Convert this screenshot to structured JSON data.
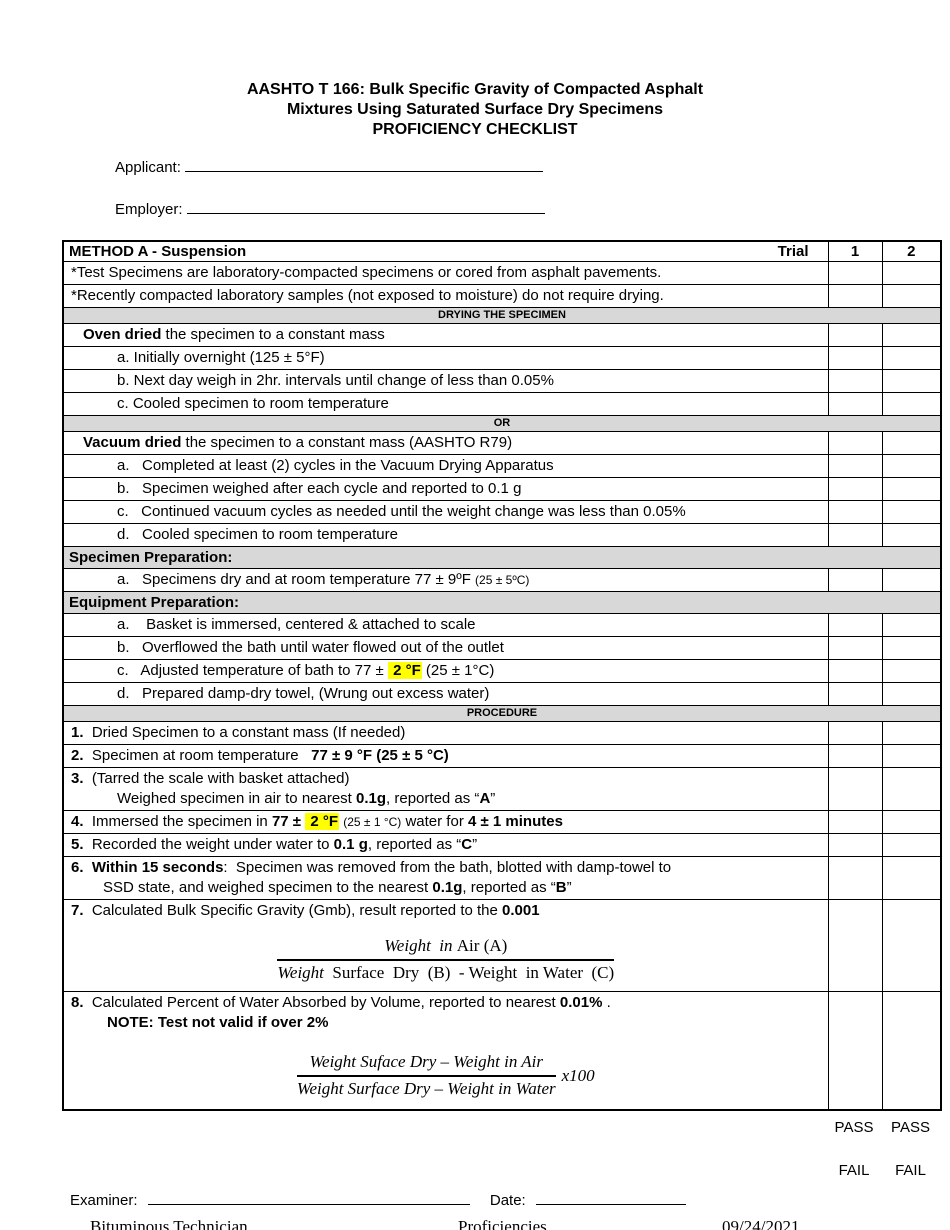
{
  "title": {
    "line1": "AASHTO T 166:  Bulk Specific Gravity of Compacted Asphalt",
    "line2": "Mixtures Using Saturated Surface Dry Specimens",
    "line3": "PROFICIENCY CHECKLIST"
  },
  "fields": {
    "applicant_label": "Applicant:",
    "employer_label": "Employer:"
  },
  "table": {
    "header": {
      "title": "METHOD A - Suspension",
      "trial_label": "Trial",
      "col1": "1",
      "col2": "2"
    },
    "rows": [
      {
        "type": "item",
        "lines": [
          {
            "ind": 0,
            "runs": [
              {
                "t": "*Test Specimens are laboratory-compacted specimens or cored from asphalt pavements."
              }
            ]
          }
        ]
      },
      {
        "type": "item",
        "lines": [
          {
            "ind": 0,
            "runs": [
              {
                "t": "*Recently compacted laboratory samples (not exposed to moisture) do not require drying."
              }
            ]
          }
        ]
      },
      {
        "type": "band",
        "align": "center",
        "text": "DRYING THE SPECIMEN"
      },
      {
        "type": "item",
        "lines": [
          {
            "ind": 1,
            "runs": [
              {
                "t": "Oven dried",
                "b": true
              },
              {
                "t": " the specimen to a constant mass"
              }
            ]
          }
        ]
      },
      {
        "type": "item",
        "lines": [
          {
            "ind": 2,
            "runs": [
              {
                "t": "a. Initially overnight (125 ± 5°F)"
              }
            ]
          }
        ]
      },
      {
        "type": "item",
        "lines": [
          {
            "ind": 2,
            "runs": [
              {
                "t": "b. Next day weigh in 2hr. intervals until change of less than 0.05%"
              }
            ]
          }
        ]
      },
      {
        "type": "item",
        "lines": [
          {
            "ind": 2,
            "runs": [
              {
                "t": "c. Cooled specimen to room temperature"
              }
            ]
          }
        ]
      },
      {
        "type": "band",
        "align": "center",
        "text": "OR"
      },
      {
        "type": "item",
        "lines": [
          {
            "ind": 1,
            "runs": [
              {
                "t": "Vacuum dried",
                "b": true
              },
              {
                "t": " the specimen to a constant mass (AASHTO R79)"
              }
            ]
          }
        ]
      },
      {
        "type": "item",
        "lines": [
          {
            "ind": 2,
            "runs": [
              {
                "t": "a.   Completed at least (2) cycles in the Vacuum Drying Apparatus"
              }
            ]
          }
        ]
      },
      {
        "type": "item",
        "lines": [
          {
            "ind": 2,
            "runs": [
              {
                "t": "b.   Specimen weighed after each cycle and reported to 0.1 g"
              }
            ]
          }
        ]
      },
      {
        "type": "item",
        "lines": [
          {
            "ind": 2,
            "runs": [
              {
                "t": "c.   Continued vacuum cycles as needed until the weight change was less than 0.05%"
              }
            ]
          }
        ]
      },
      {
        "type": "item",
        "lines": [
          {
            "ind": 2,
            "runs": [
              {
                "t": "d.   Cooled specimen to room temperature"
              }
            ]
          }
        ]
      },
      {
        "type": "band",
        "align": "left",
        "text": "Specimen Preparation:"
      },
      {
        "type": "item",
        "lines": [
          {
            "ind": 2,
            "runs": [
              {
                "t": "a.   Specimens dry and at room temperature 77 ± 9ºF "
              },
              {
                "t": "(25 ± 5ºC)",
                "sm": true
              }
            ]
          }
        ]
      },
      {
        "type": "band",
        "align": "left",
        "text": "Equipment Preparation:"
      },
      {
        "type": "item",
        "lines": [
          {
            "ind": 2,
            "runs": [
              {
                "t": "a.    Basket is immersed, centered & attached to scale"
              }
            ]
          }
        ]
      },
      {
        "type": "item",
        "lines": [
          {
            "ind": 2,
            "runs": [
              {
                "t": "b.   Overflowed the bath until water flowed out of the outlet"
              }
            ]
          }
        ]
      },
      {
        "type": "item",
        "lines": [
          {
            "ind": 2,
            "runs": [
              {
                "t": "c.   Adjusted temperature of bath to 77 ± "
              },
              {
                "t": " 2 °F",
                "b": true,
                "hl": true
              },
              {
                "t": " (25 ± 1°C)"
              }
            ]
          }
        ]
      },
      {
        "type": "item",
        "lines": [
          {
            "ind": 2,
            "runs": [
              {
                "t": "d.   Prepared damp-dry towel, (Wrung out excess water)"
              }
            ]
          }
        ]
      },
      {
        "type": "band",
        "align": "center",
        "text": "PROCEDURE"
      },
      {
        "type": "item",
        "lines": [
          {
            "ind": 0,
            "runs": [
              {
                "t": "1.",
                "b": true
              },
              {
                "t": "  Dried Specimen to a constant mass (If needed)"
              }
            ]
          }
        ]
      },
      {
        "type": "item",
        "lines": [
          {
            "ind": 0,
            "runs": [
              {
                "t": "2.",
                "b": true
              },
              {
                "t": "  Specimen at room temperature   "
              },
              {
                "t": "77 ± 9 °F (25 ± 5 °C)",
                "b": true
              }
            ]
          }
        ]
      },
      {
        "type": "item",
        "lines": [
          {
            "ind": 0,
            "runs": [
              {
                "t": "3.",
                "b": true
              },
              {
                "t": "  (Tarred the scale with basket attached)"
              }
            ]
          },
          {
            "ind": 2,
            "runs": [
              {
                "t": "Weighed specimen in air to nearest "
              },
              {
                "t": "0.1g",
                "b": true
              },
              {
                "t": ", reported as “"
              },
              {
                "t": "A",
                "b": true
              },
              {
                "t": "”"
              }
            ]
          }
        ]
      },
      {
        "type": "item",
        "lines": [
          {
            "ind": 0,
            "runs": [
              {
                "t": "4.",
                "b": true
              },
              {
                "t": "  Immersed the specimen in "
              },
              {
                "t": "77 ± ",
                "b": true
              },
              {
                "t": " 2 °F",
                "b": true,
                "hl": true
              },
              {
                "t": " "
              },
              {
                "t": "(25 ± 1 °C)",
                "sm": true
              },
              {
                "t": " water for "
              },
              {
                "t": "4 ± 1 minutes",
                "b": true
              }
            ]
          }
        ]
      },
      {
        "type": "item",
        "lines": [
          {
            "ind": 0,
            "runs": [
              {
                "t": "5.",
                "b": true
              },
              {
                "t": "  Recorded the weight under water to "
              },
              {
                "t": "0.1 g",
                "b": true
              },
              {
                "t": ", reported as “"
              },
              {
                "t": "C",
                "b": true
              },
              {
                "t": "”"
              }
            ]
          }
        ]
      },
      {
        "type": "item",
        "lines": [
          {
            "ind": 0,
            "runs": [
              {
                "t": "6.",
                "b": true
              },
              {
                "t": "  "
              },
              {
                "t": "Within 15 seconds",
                "b": true
              },
              {
                "t": ":  Specimen was removed from the bath, blotted with damp-towel to"
              }
            ]
          },
          {
            "ind": 3,
            "runs": [
              {
                "t": "SSD state, and weighed specimen to the nearest "
              },
              {
                "t": "0.1g",
                "b": true
              },
              {
                "t": ", reported as “"
              },
              {
                "t": "B",
                "b": true
              },
              {
                "t": "”"
              }
            ]
          }
        ]
      },
      {
        "type": "item",
        "fclass": "f7",
        "lines": [
          {
            "ind": 0,
            "runs": [
              {
                "t": "7.",
                "b": true
              },
              {
                "t": "  Calculated Bulk Specific Gravity (Gmb), result reported to the "
              },
              {
                "t": "0.001",
                "b": true
              }
            ]
          }
        ],
        "fraction": {
          "num": [
            {
              "t": "Weight  in ",
              "i": true
            },
            {
              "t": "Air (A)"
            }
          ],
          "den": [
            {
              "t": "Weight ",
              "i": true
            },
            {
              "t": " Surface  Dry  (B)  - Weight  in Water  (C)"
            }
          ],
          "suffix": ""
        }
      },
      {
        "type": "item",
        "fclass": "f8",
        "lines": [
          {
            "ind": 0,
            "runs": [
              {
                "t": "8.",
                "b": true
              },
              {
                "t": "  Calculated Percent of Water Absorbed by Volume, reported to nearest "
              },
              {
                "t": "0.01%",
                "b": true
              },
              {
                "t": " ."
              }
            ]
          },
          {
            "ind": 4,
            "runs": [
              {
                "t": "NOTE: Test not valid if over 2%",
                "b": true
              }
            ]
          }
        ],
        "fraction": {
          "num": [
            {
              "t": "Weight Suface Dry – Weight in Air",
              "i": true
            }
          ],
          "den": [
            {
              "t": "Weight Surface Dry – Weight in Water",
              "i": true
            }
          ],
          "suffix": "x100"
        }
      }
    ]
  },
  "result": {
    "pass": "PASS",
    "fail": "FAIL"
  },
  "signature": {
    "examiner_label": "Examiner:",
    "date_label": "Date:"
  },
  "footer": {
    "left": "Bituminous Technician",
    "center": "Proficiencies",
    "right": "09/24/2021"
  },
  "colors": {
    "highlight": "#ffff00",
    "section_gray": "#d8d8d8"
  }
}
